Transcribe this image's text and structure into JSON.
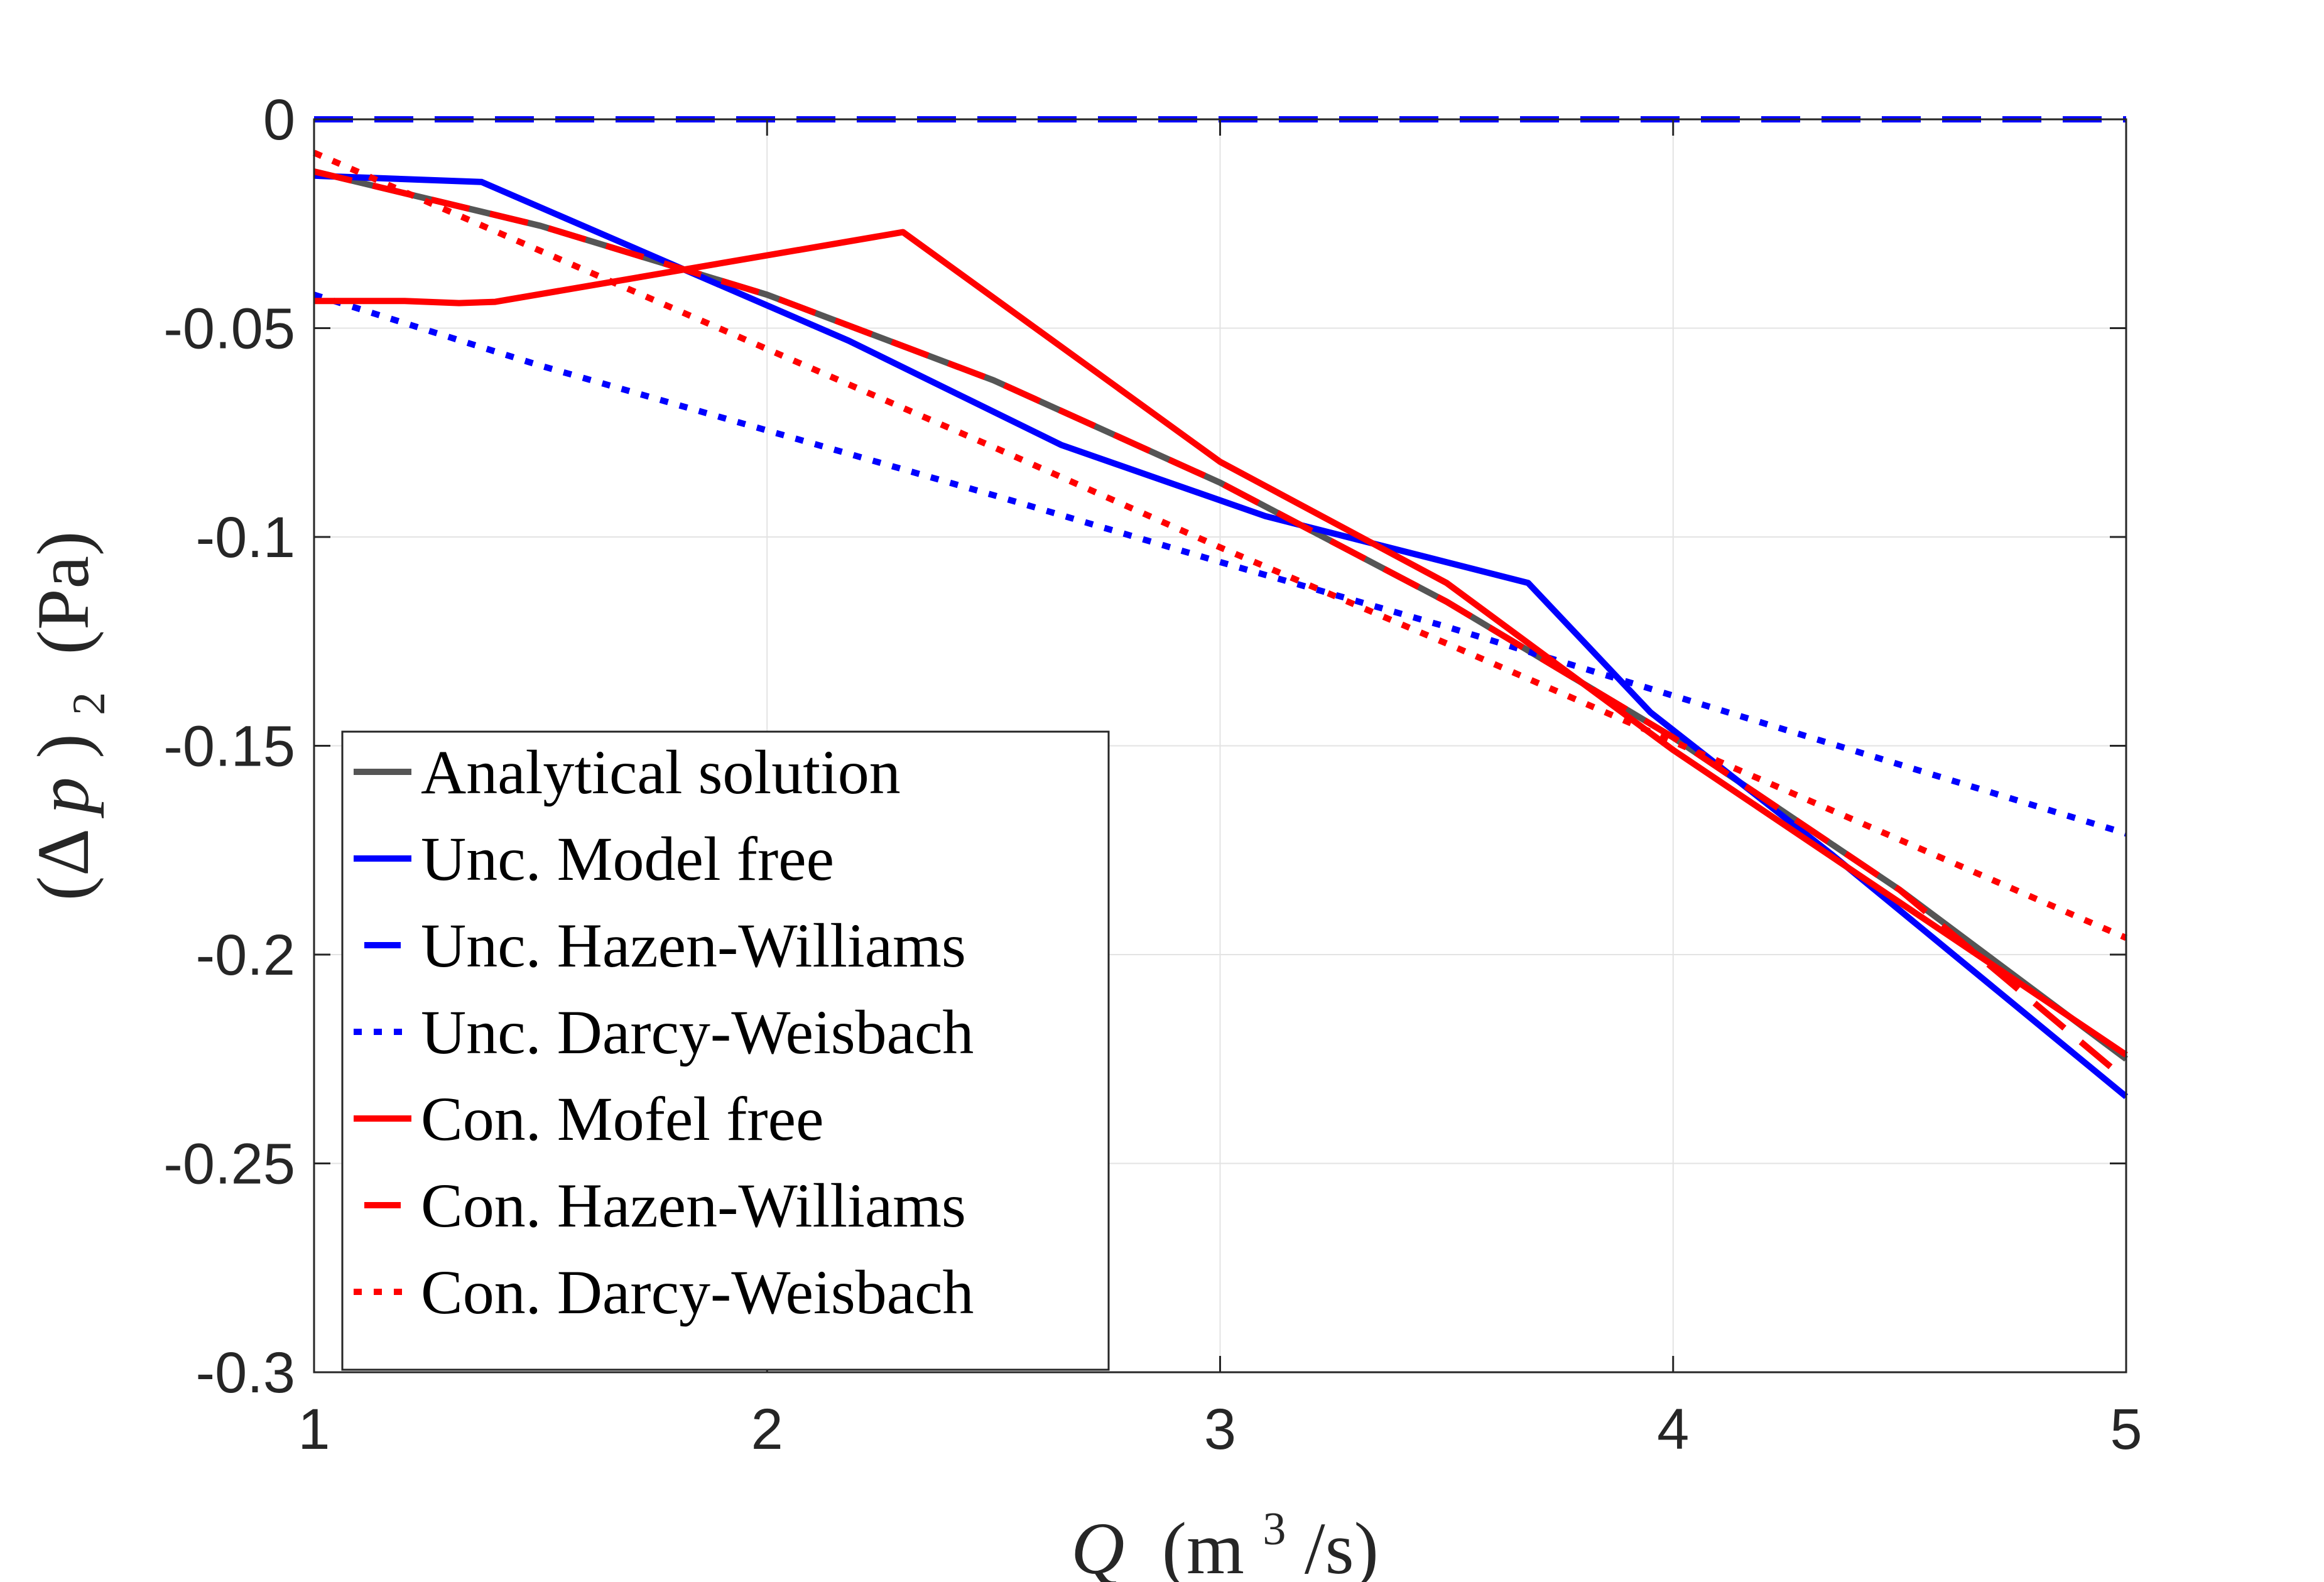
{
  "chart_data": {
    "type": "line",
    "title": "",
    "xlabel_var": "Q",
    "xlabel_unit_open": "(m",
    "xlabel_unit_sup": "3",
    "xlabel_unit_close": "/s)",
    "ylabel_open": "(Δ",
    "ylabel_var": "p",
    "ylabel_close": ")",
    "ylabel_sub": "2",
    "ylabel_unit": "(Pa)",
    "xlim": [
      1,
      5
    ],
    "ylim": [
      -0.3,
      0
    ],
    "xticks": [
      1,
      2,
      3,
      4,
      5
    ],
    "xtick_labels": [
      "1",
      "2",
      "3",
      "4",
      "5"
    ],
    "yticks": [
      0,
      -0.05,
      -0.1,
      -0.15,
      -0.2,
      -0.25,
      -0.3
    ],
    "ytick_labels": [
      "0",
      "-0.05",
      "-0.1",
      "-0.15",
      "-0.2",
      "-0.25",
      "-0.3"
    ],
    "grid": true,
    "legend_position": "lower-left",
    "series": [
      {
        "name": "Analytical solution",
        "color": "#555555",
        "style": "solid",
        "x": [
          1,
          1.5,
          2,
          2.5,
          3,
          3.5,
          4,
          4.5,
          5
        ],
        "y": [
          -0.0125,
          -0.0255,
          -0.042,
          -0.0625,
          -0.087,
          -0.1155,
          -0.148,
          -0.1845,
          -0.225
        ]
      },
      {
        "name": "Unc. Model free",
        "color": "#0000ff",
        "style": "solid",
        "x": [
          1,
          1.37,
          2.18,
          2.65,
          3.1,
          3.68,
          3.95,
          4.35,
          5
        ],
        "y": [
          -0.0135,
          -0.015,
          -0.053,
          -0.078,
          -0.095,
          -0.111,
          -0.142,
          -0.176,
          -0.234
        ]
      },
      {
        "name": "Unc. Hazen-Williams",
        "color": "#0000ff",
        "style": "dashed",
        "x": [
          1,
          5
        ],
        "y": [
          0,
          0
        ]
      },
      {
        "name": "Unc. Darcy-Weisbach",
        "color": "#0000ff",
        "style": "dotted",
        "x": [
          1,
          1.5,
          2,
          2.5,
          3,
          3.5,
          4,
          4.5,
          5
        ],
        "y": [
          -0.042,
          -0.059,
          -0.0745,
          -0.09,
          -0.106,
          -0.1215,
          -0.138,
          -0.1545,
          -0.171
        ]
      },
      {
        "name": "Con. Mofel free",
        "color": "#ff0000",
        "style": "solid",
        "x": [
          1,
          1.2,
          1.32,
          1.4,
          2.3,
          3.0,
          3.5,
          4.0,
          5
        ],
        "y": [
          -0.0435,
          -0.0435,
          -0.044,
          -0.0437,
          -0.027,
          -0.082,
          -0.111,
          -0.151,
          -0.224
        ]
      },
      {
        "name": "Con. Hazen-Williams",
        "color": "#ff0000",
        "style": "dashed",
        "x": [
          1,
          1.5,
          2,
          2.5,
          3,
          3.5,
          4,
          4.5,
          5
        ],
        "y": [
          -0.0125,
          -0.0255,
          -0.042,
          -0.0625,
          -0.087,
          -0.1155,
          -0.148,
          -0.1845,
          -0.23
        ]
      },
      {
        "name": "Con. Darcy-Weisbach",
        "color": "#ff0000",
        "style": "dotted",
        "x": [
          1,
          1.5,
          2,
          2.5,
          3,
          3.5,
          4,
          4.5,
          5
        ],
        "y": [
          -0.008,
          -0.0315,
          -0.055,
          -0.0785,
          -0.1025,
          -0.1255,
          -0.149,
          -0.1725,
          -0.196
        ]
      }
    ]
  }
}
